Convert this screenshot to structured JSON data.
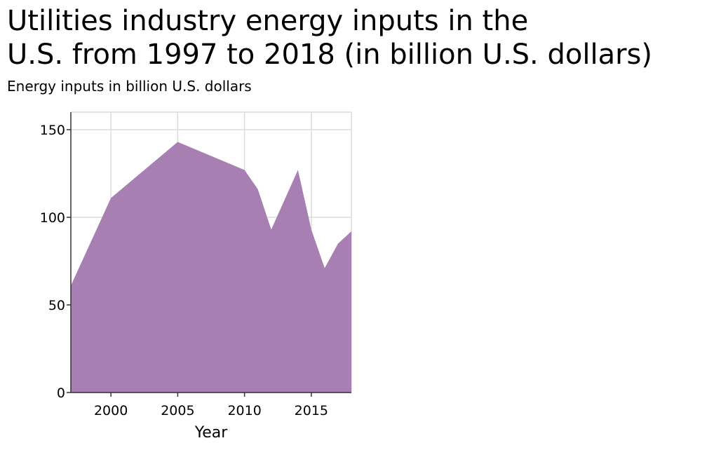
{
  "chart_data": {
    "type": "area",
    "title_line1": "Utilities industry energy inputs in the",
    "title_line2": "U.S. from 1997 to 2018 (in billion U.S. dollars)",
    "ylabel": "Energy inputs in billion U.S. dollars",
    "xlabel": "Year",
    "x": [
      1997,
      2000,
      2005,
      2010,
      2011,
      2012,
      2014,
      2015,
      2016,
      2017,
      2018
    ],
    "values": [
      61,
      111,
      143,
      127,
      116,
      93,
      127,
      93,
      71,
      85,
      92
    ],
    "xlim": [
      1997,
      2018
    ],
    "ylim": [
      0,
      160
    ],
    "x_ticks": [
      "2000",
      "2005",
      "2010",
      "2015"
    ],
    "y_ticks": [
      "0",
      "50",
      "100",
      "150"
    ],
    "grid": true,
    "color": "#a87fb3"
  }
}
